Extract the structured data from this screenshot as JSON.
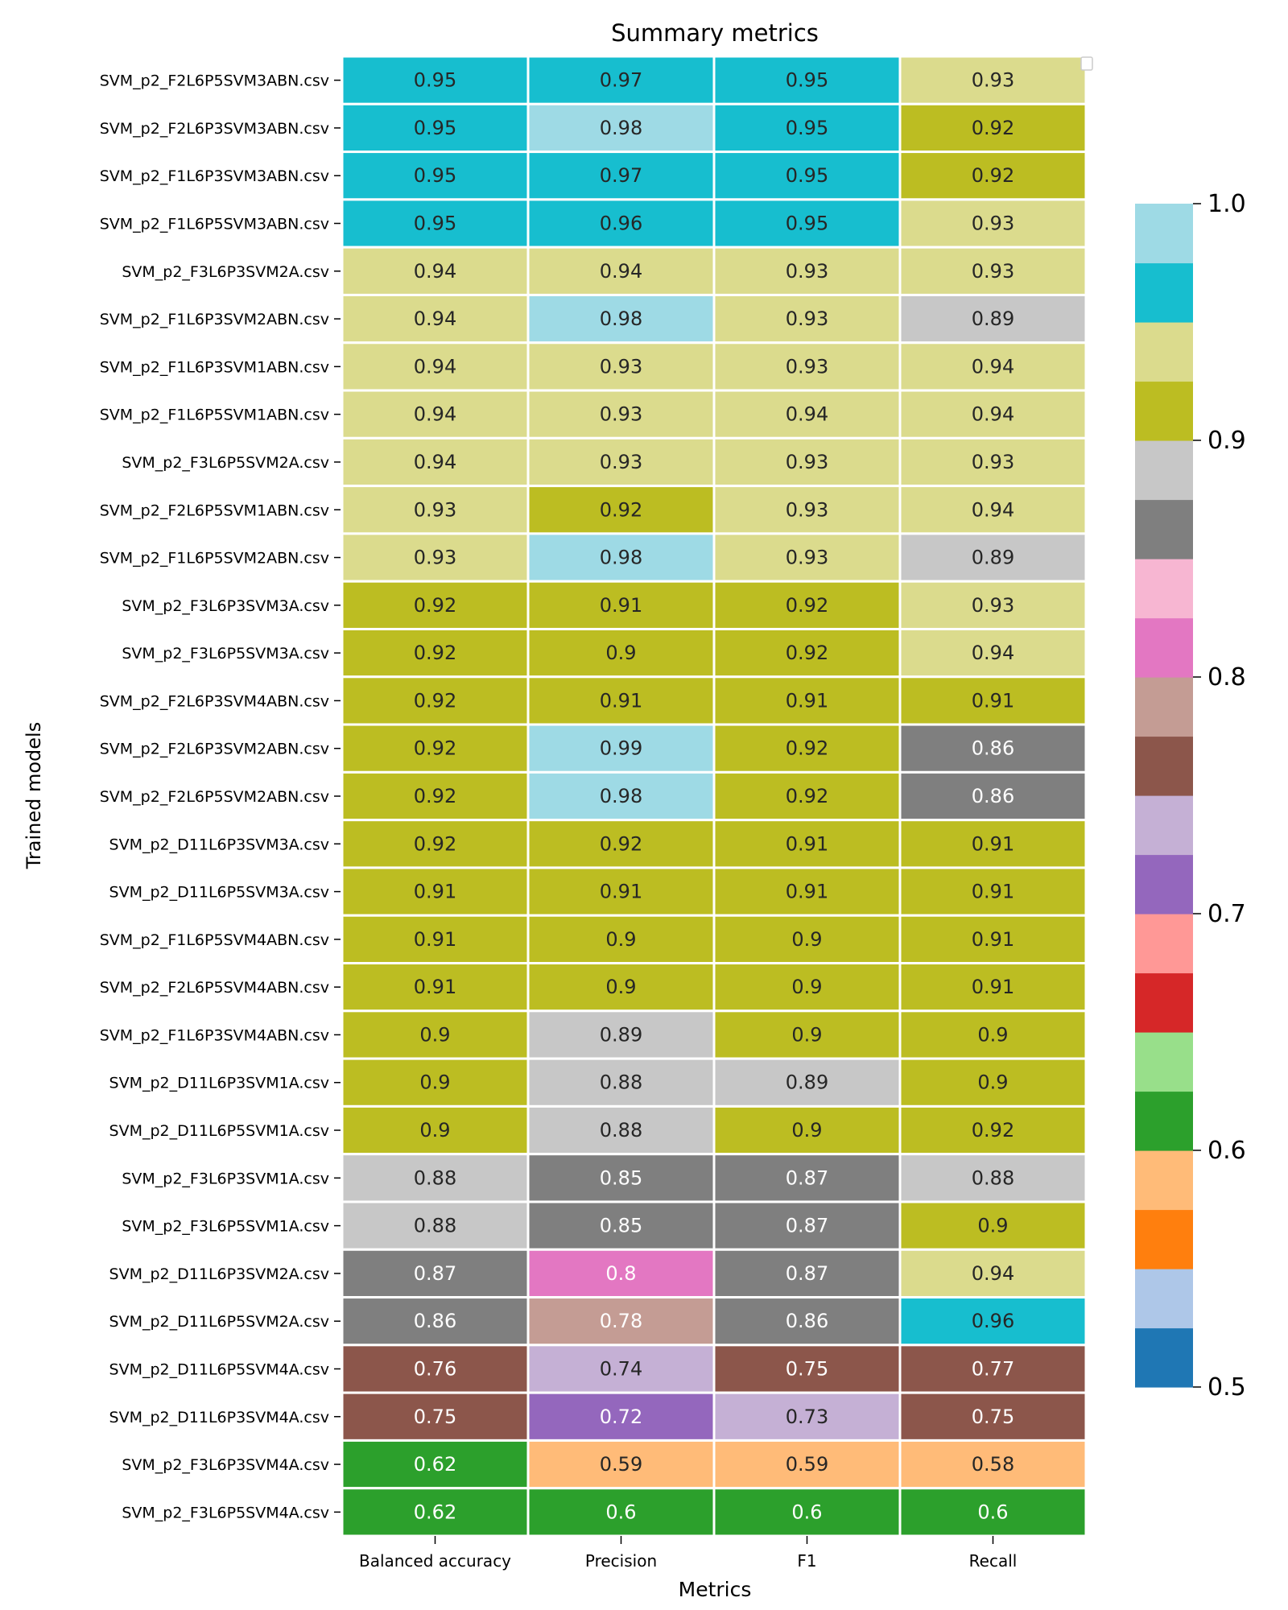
{
  "chart_data": {
    "type": "heatmap",
    "title": "Summary metrics",
    "xlabel": "Metrics",
    "ylabel": "Trained models",
    "columns": [
      "Balanced accuracy",
      "Precision",
      "F1",
      "Recall"
    ],
    "rows": [
      {
        "model": "SVM_p2_F2L6P5SVM3ABN.csv",
        "values": [
          0.95,
          0.97,
          0.95,
          0.93
        ]
      },
      {
        "model": "SVM_p2_F2L6P3SVM3ABN.csv",
        "values": [
          0.95,
          0.98,
          0.95,
          0.92
        ]
      },
      {
        "model": "SVM_p2_F1L6P3SVM3ABN.csv",
        "values": [
          0.95,
          0.97,
          0.95,
          0.92
        ]
      },
      {
        "model": "SVM_p2_F1L6P5SVM3ABN.csv",
        "values": [
          0.95,
          0.96,
          0.95,
          0.93
        ]
      },
      {
        "model": "SVM_p2_F3L6P3SVM2A.csv",
        "values": [
          0.94,
          0.94,
          0.93,
          0.93
        ]
      },
      {
        "model": "SVM_p2_F1L6P3SVM2ABN.csv",
        "values": [
          0.94,
          0.98,
          0.93,
          0.89
        ]
      },
      {
        "model": "SVM_p2_F1L6P3SVM1ABN.csv",
        "values": [
          0.94,
          0.93,
          0.93,
          0.94
        ]
      },
      {
        "model": "SVM_p2_F1L6P5SVM1ABN.csv",
        "values": [
          0.94,
          0.93,
          0.94,
          0.94
        ]
      },
      {
        "model": "SVM_p2_F3L6P5SVM2A.csv",
        "values": [
          0.94,
          0.93,
          0.93,
          0.93
        ]
      },
      {
        "model": "SVM_p2_F2L6P5SVM1ABN.csv",
        "values": [
          0.93,
          0.92,
          0.93,
          0.94
        ]
      },
      {
        "model": "SVM_p2_F1L6P5SVM2ABN.csv",
        "values": [
          0.93,
          0.98,
          0.93,
          0.89
        ]
      },
      {
        "model": "SVM_p2_F3L6P3SVM3A.csv",
        "values": [
          0.92,
          0.91,
          0.92,
          0.93
        ]
      },
      {
        "model": "SVM_p2_F3L6P5SVM3A.csv",
        "values": [
          0.92,
          0.9,
          0.92,
          0.94
        ]
      },
      {
        "model": "SVM_p2_F2L6P3SVM4ABN.csv",
        "values": [
          0.92,
          0.91,
          0.91,
          0.91
        ]
      },
      {
        "model": "SVM_p2_F2L6P3SVM2ABN.csv",
        "values": [
          0.92,
          0.99,
          0.92,
          0.86
        ]
      },
      {
        "model": "SVM_p2_F2L6P5SVM2ABN.csv",
        "values": [
          0.92,
          0.98,
          0.92,
          0.86
        ]
      },
      {
        "model": "SVM_p2_D11L6P3SVM3A.csv",
        "values": [
          0.92,
          0.92,
          0.91,
          0.91
        ]
      },
      {
        "model": "SVM_p2_D11L6P5SVM3A.csv",
        "values": [
          0.91,
          0.91,
          0.91,
          0.91
        ]
      },
      {
        "model": "SVM_p2_F1L6P5SVM4ABN.csv",
        "values": [
          0.91,
          0.9,
          0.9,
          0.91
        ]
      },
      {
        "model": "SVM_p2_F2L6P5SVM4ABN.csv",
        "values": [
          0.91,
          0.9,
          0.9,
          0.91
        ]
      },
      {
        "model": "SVM_p2_F1L6P3SVM4ABN.csv",
        "values": [
          0.9,
          0.89,
          0.9,
          0.9
        ]
      },
      {
        "model": "SVM_p2_D11L6P3SVM1A.csv",
        "values": [
          0.9,
          0.88,
          0.89,
          0.9
        ]
      },
      {
        "model": "SVM_p2_D11L6P5SVM1A.csv",
        "values": [
          0.9,
          0.88,
          0.9,
          0.92
        ]
      },
      {
        "model": "SVM_p2_F3L6P3SVM1A.csv",
        "values": [
          0.88,
          0.85,
          0.87,
          0.88
        ]
      },
      {
        "model": "SVM_p2_F3L6P5SVM1A.csv",
        "values": [
          0.88,
          0.85,
          0.87,
          0.9
        ]
      },
      {
        "model": "SVM_p2_D11L6P3SVM2A.csv",
        "values": [
          0.87,
          0.8,
          0.87,
          0.94
        ]
      },
      {
        "model": "SVM_p2_D11L6P5SVM2A.csv",
        "values": [
          0.86,
          0.78,
          0.86,
          0.96
        ]
      },
      {
        "model": "SVM_p2_D11L6P5SVM4A.csv",
        "values": [
          0.76,
          0.74,
          0.75,
          0.77
        ]
      },
      {
        "model": "SVM_p2_D11L6P3SVM4A.csv",
        "values": [
          0.75,
          0.72,
          0.73,
          0.75
        ]
      },
      {
        "model": "SVM_p2_F3L6P3SVM4A.csv",
        "values": [
          0.62,
          0.59,
          0.59,
          0.58
        ]
      },
      {
        "model": "SVM_p2_F3L6P5SVM4A.csv",
        "values": [
          0.62,
          0.6,
          0.6,
          0.6
        ]
      }
    ],
    "colorbar": {
      "vmin": 0.5,
      "vmax": 1.0,
      "ticks": [
        0.5,
        0.6,
        0.7,
        0.8,
        0.9,
        1.0
      ],
      "tick_labels": [
        "0.5",
        "0.6",
        "0.7",
        "0.8",
        "0.9",
        "1.0"
      ],
      "palette": [
        "#1f77b4",
        "#aec7e8",
        "#ff7f0e",
        "#ffbb78",
        "#2ca02c",
        "#98df8a",
        "#d62728",
        "#ff9896",
        "#9467bd",
        "#c5b0d5",
        "#8c564b",
        "#c49c94",
        "#e377c2",
        "#f7b6d2",
        "#7f7f7f",
        "#c7c7c7",
        "#bcbd22",
        "#dbdb8d",
        "#17becf",
        "#9edae5"
      ],
      "dark_text_indices": [
        1,
        3,
        5,
        7,
        9,
        13,
        15,
        16,
        17,
        18,
        19
      ]
    },
    "legend_placement": "top-right",
    "grid": false
  }
}
